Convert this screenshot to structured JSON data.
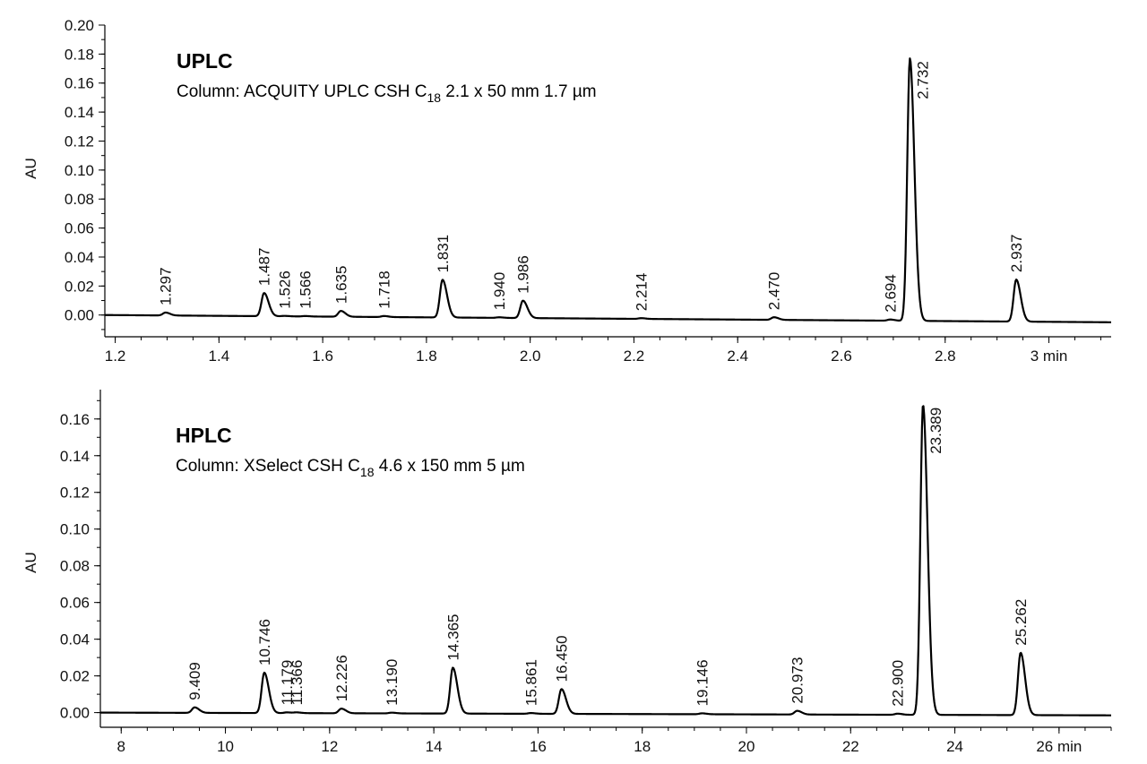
{
  "chart_data": [
    {
      "type": "line",
      "title": "UPLC",
      "column": {
        "prefix": "Column:  ACQUITY UPLC CSH C",
        "subscript": "18",
        "suffix": " 2.1 x 50 mm 1.7 µm"
      },
      "xlabel": "min",
      "ylabel": "AU",
      "xlim": [
        1.18,
        3.12
      ],
      "ylim": [
        -0.015,
        0.2
      ],
      "x_ticks": [
        1.2,
        1.4,
        1.6,
        1.8,
        2.0,
        2.2,
        2.4,
        2.6,
        2.8,
        3.0
      ],
      "x_tick_labels": [
        "1.2",
        "1.4",
        "1.6",
        "1.8",
        "2.0",
        "2.2",
        "2.4",
        "2.6",
        "2.8",
        "3 min"
      ],
      "y_ticks": [
        0,
        0.02,
        0.04,
        0.06,
        0.08,
        0.1,
        0.12,
        0.14,
        0.16,
        0.18,
        0.2
      ],
      "y_tick_labels": [
        "0.00",
        "0.02",
        "0.04",
        "0.06",
        "0.08",
        "0.10",
        "0.12",
        "0.14",
        "0.16",
        "0.18",
        "0.20"
      ],
      "baseline": [
        [
          1.18,
          0.0
        ],
        [
          3.12,
          -0.005
        ]
      ],
      "peaks": [
        {
          "rt": 1.297,
          "label": "1.297",
          "height": 0.002
        },
        {
          "rt": 1.487,
          "label": "1.487",
          "height": 0.016
        },
        {
          "rt": 1.526,
          "label": "1.526",
          "height": 0.0003
        },
        {
          "rt": 1.566,
          "label": "1.566",
          "height": 0.0003
        },
        {
          "rt": 1.635,
          "label": "1.635",
          "height": 0.004
        },
        {
          "rt": 1.718,
          "label": "1.718",
          "height": 0.0007
        },
        {
          "rt": 1.831,
          "label": "1.831",
          "height": 0.026
        },
        {
          "rt": 1.94,
          "label": "1.940",
          "height": 0.0004
        },
        {
          "rt": 1.986,
          "label": "1.986",
          "height": 0.012
        },
        {
          "rt": 2.214,
          "label": "2.214",
          "height": 0.0005
        },
        {
          "rt": 2.47,
          "label": "2.470",
          "height": 0.0018
        },
        {
          "rt": 2.694,
          "label": "2.694",
          "height": 0.0008
        },
        {
          "rt": 2.732,
          "label": "2.732",
          "height": 0.181
        },
        {
          "rt": 2.937,
          "label": "2.937",
          "height": 0.029
        }
      ]
    },
    {
      "type": "line",
      "title": "HPLC",
      "column": {
        "prefix": "Column:  XSelect CSH C",
        "subscript": "18",
        "suffix": " 4.6 x 150 mm 5 µm"
      },
      "xlabel": "min",
      "ylabel": "AU",
      "xlim": [
        7.6,
        27.0
      ],
      "ylim": [
        -0.008,
        0.176
      ],
      "x_ticks": [
        8,
        10,
        12,
        14,
        16,
        18,
        20,
        22,
        24,
        26
      ],
      "x_tick_labels": [
        "8",
        "10",
        "12",
        "14",
        "16",
        "18",
        "20",
        "22",
        "24",
        "26 min"
      ],
      "y_ticks": [
        0,
        0.02,
        0.04,
        0.06,
        0.08,
        0.1,
        0.12,
        0.14,
        0.16
      ],
      "y_tick_labels": [
        "0.00",
        "0.02",
        "0.04",
        "0.06",
        "0.08",
        "0.10",
        "0.12",
        "0.14",
        "0.16"
      ],
      "baseline": [
        [
          7.6,
          0.0
        ],
        [
          27.0,
          -0.0015
        ]
      ],
      "peaks": [
        {
          "rt": 9.409,
          "label": "9.409",
          "height": 0.003
        },
        {
          "rt": 10.746,
          "label": "10.746",
          "height": 0.022
        },
        {
          "rt": 11.179,
          "label": "11.179",
          "height": 0.0004
        },
        {
          "rt": 11.366,
          "label": "11.366",
          "height": 0.0004
        },
        {
          "rt": 12.226,
          "label": "12.226",
          "height": 0.0025
        },
        {
          "rt": 13.19,
          "label": "13.190",
          "height": 0.0004
        },
        {
          "rt": 14.365,
          "label": "14.365",
          "height": 0.025
        },
        {
          "rt": 15.861,
          "label": "15.861",
          "height": 0.0004
        },
        {
          "rt": 16.45,
          "label": "16.450",
          "height": 0.0135
        },
        {
          "rt": 19.146,
          "label": "19.146",
          "height": 0.0005
        },
        {
          "rt": 20.973,
          "label": "20.973",
          "height": 0.002
        },
        {
          "rt": 22.9,
          "label": "22.900",
          "height": 0.0006
        },
        {
          "rt": 23.389,
          "label": "23.389",
          "height": 0.169
        },
        {
          "rt": 25.262,
          "label": "25.262",
          "height": 0.034
        }
      ]
    }
  ]
}
